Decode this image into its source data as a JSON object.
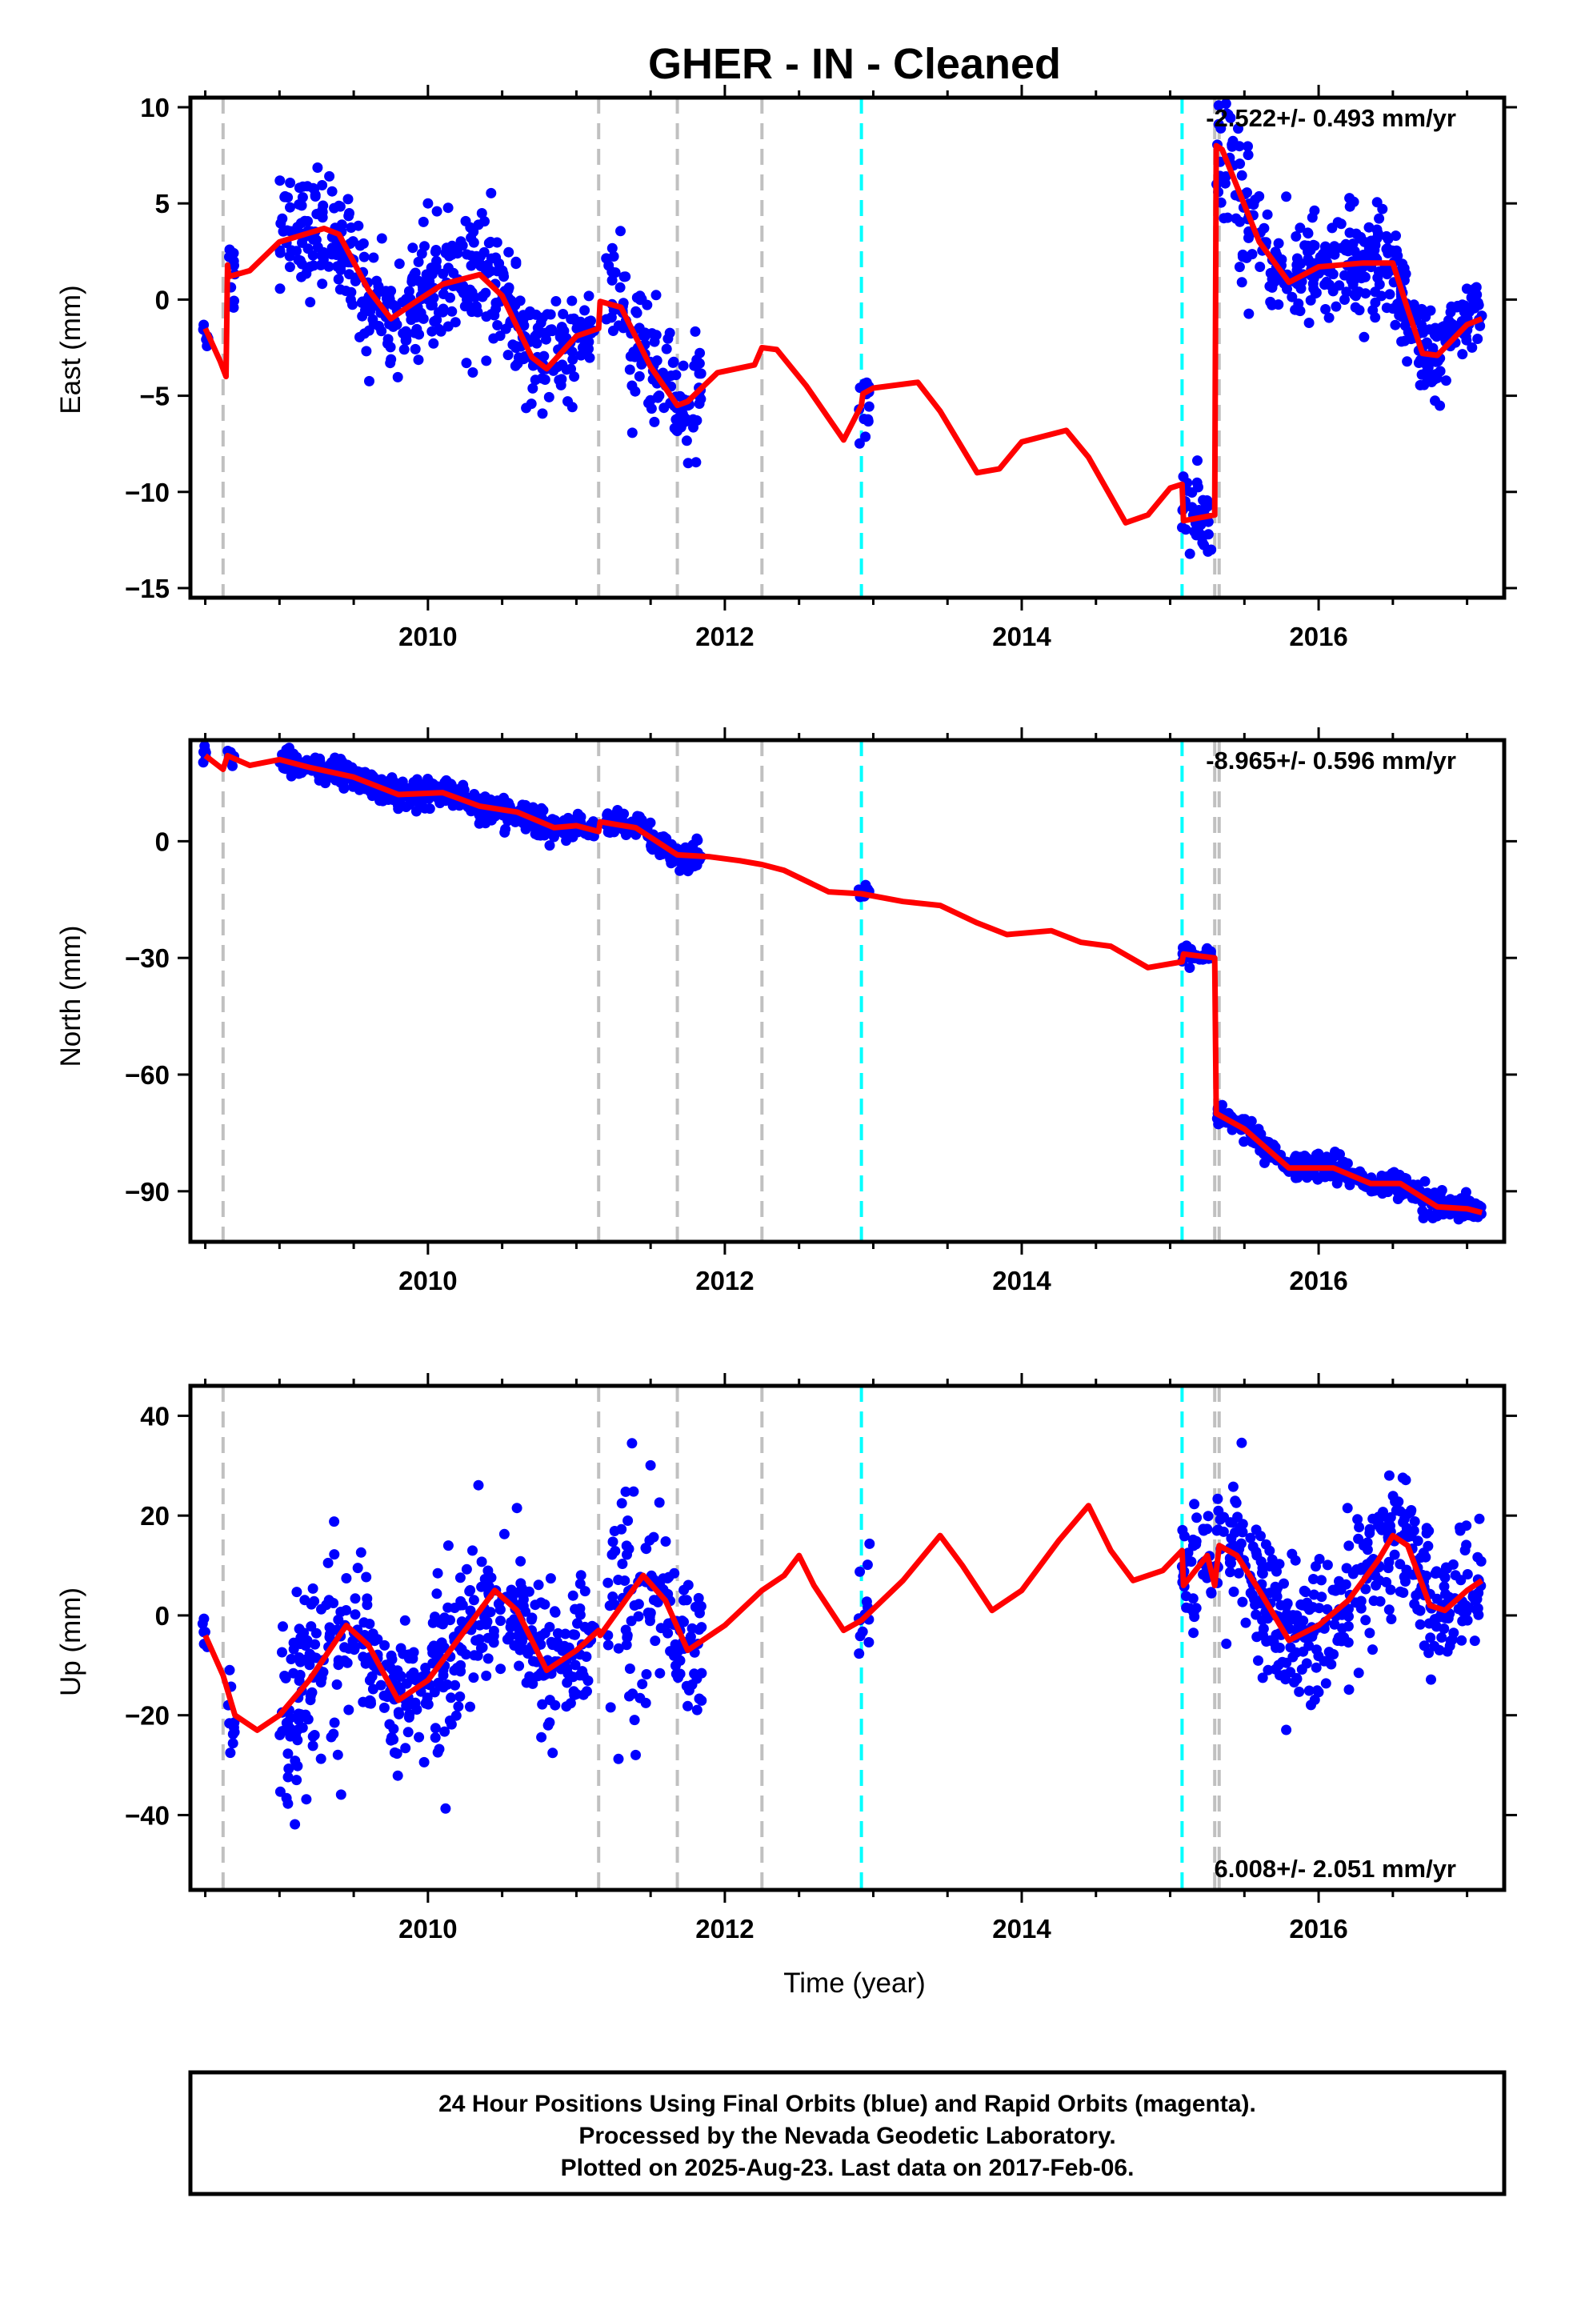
{
  "title": "GHER  - IN - Cleaned",
  "xlabel": "Time (year)",
  "footer": {
    "line1": "24 Hour Positions Using Final Orbits (blue) and Rapid Orbits (magenta).",
    "line2": "Processed by the Nevada Geodetic Laboratory.",
    "line3": "Plotted on 2025-Aug-23. Last data on 2017-Feb-06."
  },
  "colors": {
    "points": "#0000ff",
    "model": "#ff0000",
    "equipment_change": "#c0c0c0",
    "earthquake": "#00ffff"
  },
  "chart_data": [
    {
      "type": "scatter",
      "name": "east",
      "ylabel": "East (mm)",
      "rate_text": "-2.522+/- 0.493 mm/yr",
      "rate_position": "top-right",
      "xlim": [
        2008.4,
        2017.25
      ],
      "ylim": [
        -15.5,
        10.5
      ],
      "yticks": [
        10,
        5,
        0,
        -5,
        -10,
        -15
      ],
      "xticks": [
        2010,
        2012,
        2014,
        2016
      ],
      "grey_lines": [
        2008.62,
        2011.15,
        2011.68,
        2012.25,
        2015.3,
        2015.33
      ],
      "cyan_lines": [
        2012.92,
        2015.08
      ],
      "model": [
        [
          2008.5,
          -1.5
        ],
        [
          2008.6,
          -3.2
        ],
        [
          2008.64,
          -4.0
        ],
        [
          2008.65,
          1.8
        ],
        [
          2008.66,
          1.2
        ],
        [
          2008.8,
          1.5
        ],
        [
          2009.0,
          3.0
        ],
        [
          2009.3,
          3.7
        ],
        [
          2009.4,
          3.4
        ],
        [
          2009.6,
          0.5
        ],
        [
          2009.75,
          -1.0
        ],
        [
          2009.9,
          -0.2
        ],
        [
          2010.1,
          0.8
        ],
        [
          2010.35,
          1.3
        ],
        [
          2010.5,
          0.2
        ],
        [
          2010.7,
          -3.0
        ],
        [
          2010.8,
          -3.6
        ],
        [
          2011.0,
          -1.9
        ],
        [
          2011.15,
          -1.5
        ],
        [
          2011.16,
          -0.1
        ],
        [
          2011.3,
          -0.4
        ],
        [
          2011.5,
          -3.5
        ],
        [
          2011.68,
          -5.5
        ],
        [
          2011.75,
          -5.3
        ],
        [
          2011.95,
          -3.8
        ],
        [
          2012.2,
          -3.4
        ],
        [
          2012.25,
          -2.5
        ],
        [
          2012.35,
          -2.6
        ],
        [
          2012.55,
          -4.5
        ],
        [
          2012.8,
          -7.3
        ],
        [
          2012.92,
          -5.5
        ],
        [
          2012.93,
          -4.9
        ],
        [
          2013.0,
          -4.6
        ],
        [
          2013.3,
          -4.3
        ],
        [
          2013.45,
          -5.8
        ],
        [
          2013.7,
          -9.0
        ],
        [
          2013.85,
          -8.8
        ],
        [
          2014.0,
          -7.4
        ],
        [
          2014.3,
          -6.8
        ],
        [
          2014.45,
          -8.2
        ],
        [
          2014.7,
          -11.6
        ],
        [
          2014.85,
          -11.2
        ],
        [
          2015.0,
          -9.8
        ],
        [
          2015.08,
          -9.6
        ],
        [
          2015.09,
          -11.5
        ],
        [
          2015.3,
          -11.2
        ],
        [
          2015.31,
          8.0
        ],
        [
          2015.35,
          7.8
        ],
        [
          2015.6,
          3.0
        ],
        [
          2015.8,
          0.9
        ],
        [
          2016.0,
          1.7
        ],
        [
          2016.3,
          1.9
        ],
        [
          2016.5,
          1.9
        ],
        [
          2016.6,
          -0.5
        ],
        [
          2016.7,
          -2.8
        ],
        [
          2016.8,
          -2.9
        ],
        [
          2017.0,
          -1.3
        ],
        [
          2017.1,
          -1.0
        ]
      ],
      "point_segments": [
        [
          2008.48,
          2008.52,
          -1.5,
          0.6,
          6
        ],
        [
          2008.65,
          2008.7,
          0.3,
          1.5,
          10
        ],
        [
          2009.0,
          2009.6,
          3.0,
          2.0,
          130
        ],
        [
          2009.6,
          2010.0,
          -0.5,
          1.8,
          90
        ],
        [
          2010.0,
          2010.5,
          1.3,
          2.3,
          110
        ],
        [
          2010.5,
          2011.0,
          -3.8,
          1.8,
          110
        ],
        [
          2011.0,
          2011.12,
          -0.8,
          1.3,
          25
        ],
        [
          2011.2,
          2011.5,
          0.5,
          2.5,
          55
        ],
        [
          2011.5,
          2011.85,
          -5.0,
          1.8,
          70
        ],
        [
          2012.9,
          2012.98,
          -4.5,
          1.8,
          14
        ],
        [
          2015.08,
          2015.28,
          -11.5,
          1.6,
          40
        ],
        [
          2015.31,
          2015.6,
          4.0,
          2.8,
          55
        ],
        [
          2015.6,
          2016.6,
          1.9,
          1.8,
          230
        ],
        [
          2016.6,
          2016.85,
          -2.8,
          1.4,
          60
        ],
        [
          2016.85,
          2017.1,
          -1.8,
          1.3,
          55
        ]
      ]
    },
    {
      "type": "scatter",
      "name": "north",
      "ylabel": "North (mm)",
      "rate_text": "-8.965+/- 0.596 mm/yr",
      "rate_position": "top-right",
      "xlim": [
        2008.4,
        2017.25
      ],
      "ylim": [
        -103,
        26
      ],
      "yticks": [
        0,
        -30,
        -60,
        -90
      ],
      "xticks": [
        2010,
        2012,
        2014,
        2016
      ],
      "grey_lines": [
        2008.62,
        2011.15,
        2011.68,
        2012.25,
        2015.3,
        2015.33
      ],
      "cyan_lines": [
        2012.92,
        2015.08
      ],
      "model": [
        [
          2008.5,
          22
        ],
        [
          2008.62,
          18.5
        ],
        [
          2008.65,
          22
        ],
        [
          2008.8,
          19.5
        ],
        [
          2009.0,
          21
        ],
        [
          2009.2,
          19
        ],
        [
          2009.5,
          16.5
        ],
        [
          2009.8,
          12
        ],
        [
          2010.1,
          12.5
        ],
        [
          2010.35,
          9
        ],
        [
          2010.6,
          7.5
        ],
        [
          2010.85,
          3.5
        ],
        [
          2011.0,
          4.0
        ],
        [
          2011.15,
          2.5
        ],
        [
          2011.16,
          5.0
        ],
        [
          2011.4,
          3.5
        ],
        [
          2011.68,
          -3.5
        ],
        [
          2011.9,
          -4.0
        ],
        [
          2012.1,
          -5.0
        ],
        [
          2012.25,
          -6.0
        ],
        [
          2012.4,
          -7.5
        ],
        [
          2012.7,
          -13
        ],
        [
          2012.92,
          -13.5
        ],
        [
          2013.2,
          -15.5
        ],
        [
          2013.45,
          -16.5
        ],
        [
          2013.7,
          -21
        ],
        [
          2013.9,
          -24
        ],
        [
          2014.2,
          -23
        ],
        [
          2014.4,
          -26
        ],
        [
          2014.6,
          -27
        ],
        [
          2014.85,
          -32.5
        ],
        [
          2015.08,
          -31
        ],
        [
          2015.09,
          -29
        ],
        [
          2015.3,
          -30
        ],
        [
          2015.31,
          -70
        ],
        [
          2015.5,
          -74
        ],
        [
          2015.8,
          -84
        ],
        [
          2016.1,
          -84
        ],
        [
          2016.35,
          -88
        ],
        [
          2016.55,
          -88
        ],
        [
          2016.8,
          -94
        ],
        [
          2017.0,
          -94.5
        ],
        [
          2017.1,
          -95.5
        ]
      ],
      "point_segments": [
        [
          2008.48,
          2008.52,
          22,
          1.5,
          6
        ],
        [
          2008.65,
          2008.7,
          20,
          2.0,
          10
        ],
        [
          2009.0,
          2009.6,
          18.5,
          2.3,
          130
        ],
        [
          2009.6,
          2010.0,
          13,
          2.3,
          90
        ],
        [
          2010.0,
          2010.5,
          11,
          2.3,
          110
        ],
        [
          2010.5,
          2011.0,
          5.5,
          2.3,
          110
        ],
        [
          2011.0,
          2011.12,
          4,
          1.8,
          25
        ],
        [
          2011.2,
          2011.5,
          5,
          2.5,
          55
        ],
        [
          2011.5,
          2011.85,
          -1.5,
          2.3,
          70
        ],
        [
          2012.9,
          2012.98,
          -13,
          1.2,
          14
        ],
        [
          2015.08,
          2015.28,
          -29,
          1.8,
          40
        ],
        [
          2015.31,
          2015.6,
          -73,
          2.2,
          55
        ],
        [
          2015.6,
          2016.6,
          -85,
          2.3,
          230
        ],
        [
          2016.6,
          2016.85,
          -91,
          2.3,
          60
        ],
        [
          2016.85,
          2017.1,
          -95,
          1.8,
          55
        ]
      ]
    },
    {
      "type": "scatter",
      "name": "up",
      "ylabel": "Up (mm)",
      "rate_text": "6.008+/- 2.051 mm/yr",
      "rate_position": "bottom-right",
      "xlim": [
        2008.4,
        2017.25
      ],
      "ylim": [
        -55,
        46
      ],
      "yticks": [
        40,
        20,
        0,
        -20,
        -40
      ],
      "xticks": [
        2010,
        2012,
        2014,
        2016
      ],
      "grey_lines": [
        2008.62,
        2011.15,
        2011.68,
        2012.25,
        2015.3,
        2015.33
      ],
      "cyan_lines": [
        2012.92,
        2015.08
      ],
      "model": [
        [
          2008.5,
          -4
        ],
        [
          2008.62,
          -12
        ],
        [
          2008.7,
          -20
        ],
        [
          2008.85,
          -23
        ],
        [
          2009.0,
          -20
        ],
        [
          2009.2,
          -13
        ],
        [
          2009.45,
          -2
        ],
        [
          2009.6,
          -6
        ],
        [
          2009.8,
          -17
        ],
        [
          2010.0,
          -13
        ],
        [
          2010.25,
          -3
        ],
        [
          2010.45,
          5
        ],
        [
          2010.6,
          1
        ],
        [
          2010.8,
          -11
        ],
        [
          2011.0,
          -7
        ],
        [
          2011.15,
          -3
        ],
        [
          2011.16,
          -4
        ],
        [
          2011.45,
          8
        ],
        [
          2011.6,
          3
        ],
        [
          2011.75,
          -7
        ],
        [
          2012.0,
          -2
        ],
        [
          2012.25,
          5
        ],
        [
          2012.4,
          8
        ],
        [
          2012.5,
          12
        ],
        [
          2012.6,
          6
        ],
        [
          2012.8,
          -3
        ],
        [
          2012.92,
          -1
        ],
        [
          2013.2,
          7
        ],
        [
          2013.45,
          16
        ],
        [
          2013.6,
          10
        ],
        [
          2013.8,
          1
        ],
        [
          2014.0,
          5
        ],
        [
          2014.25,
          15
        ],
        [
          2014.45,
          22
        ],
        [
          2014.6,
          13
        ],
        [
          2014.75,
          7
        ],
        [
          2014.95,
          9
        ],
        [
          2015.08,
          13
        ],
        [
          2015.09,
          6
        ],
        [
          2015.25,
          12
        ],
        [
          2015.3,
          6
        ],
        [
          2015.33,
          14
        ],
        [
          2015.45,
          12
        ],
        [
          2015.6,
          5
        ],
        [
          2015.8,
          -5
        ],
        [
          2016.0,
          -2
        ],
        [
          2016.2,
          3
        ],
        [
          2016.4,
          11
        ],
        [
          2016.5,
          16
        ],
        [
          2016.6,
          14
        ],
        [
          2016.75,
          2
        ],
        [
          2016.85,
          1
        ],
        [
          2017.0,
          5
        ],
        [
          2017.1,
          7
        ]
      ],
      "point_segments": [
        [
          2008.48,
          2008.52,
          -2,
          4,
          6
        ],
        [
          2008.65,
          2008.7,
          -30,
          10,
          10
        ],
        [
          2009.0,
          2009.6,
          -5,
          13,
          130
        ],
        [
          2009.6,
          2010.0,
          -16,
          8,
          90
        ],
        [
          2010.0,
          2010.5,
          -2,
          12,
          110
        ],
        [
          2010.5,
          2011.0,
          -10,
          10,
          110
        ],
        [
          2011.0,
          2011.12,
          -12,
          9,
          25
        ],
        [
          2011.2,
          2011.5,
          3,
          15,
          55
        ],
        [
          2011.5,
          2011.85,
          0,
          10,
          70
        ],
        [
          2012.9,
          2012.98,
          -2,
          7,
          14
        ],
        [
          2015.08,
          2015.28,
          10,
          9,
          40
        ],
        [
          2015.31,
          2015.6,
          10,
          9,
          55
        ],
        [
          2015.6,
          2016.6,
          2,
          10,
          230
        ],
        [
          2016.6,
          2016.85,
          4,
          8,
          60
        ],
        [
          2016.85,
          2017.1,
          3,
          8,
          55
        ]
      ]
    }
  ]
}
